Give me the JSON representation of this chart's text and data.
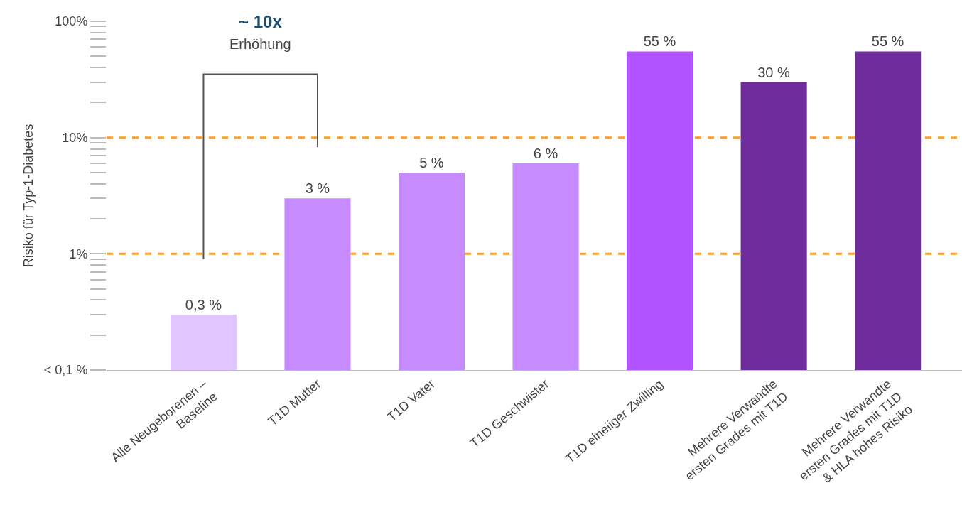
{
  "chart_data": {
    "type": "bar",
    "ylabel": "Risiko für Typ-1-Diabetes",
    "categories": [
      "Alle Neugeborenen –\nBaseline",
      "T1D Mutter",
      "T1D Vater",
      "T1D Geschwister",
      "T1D eineiiger Zwilling",
      "Mehrere Verwandte\nersten Grades mit T1D",
      "Mehrere Verwandte\nersten Grades mit T1D\n& HLA hohes Risiko"
    ],
    "values": [
      0.3,
      3,
      5,
      6,
      55,
      30,
      55
    ],
    "value_labels": [
      "0,3 %",
      "3 %",
      "5 %",
      "6 %",
      "55 %",
      "30 %",
      "55 %"
    ],
    "colors": [
      "#e2c6ff",
      "#c68cff",
      "#c68cff",
      "#c68cff",
      "#b153ff",
      "#6f2c9c",
      "#6f2c9c"
    ],
    "log": true,
    "ylim": [
      0.1,
      100
    ],
    "yticks": [
      {
        "value": 0.1,
        "label": "< 0,1 %"
      },
      {
        "value": 1,
        "label": "1%"
      },
      {
        "value": 10,
        "label": "10%"
      },
      {
        "value": 100,
        "label": "100%"
      }
    ],
    "ref_lines": [
      {
        "axis": "y",
        "value": 10,
        "label": null,
        "color": "#f7a033",
        "line_style": "dashed"
      },
      {
        "axis": "y",
        "value": 1,
        "label": null,
        "color": "#f7a033",
        "line_style": "dashed"
      }
    ],
    "annotations": [
      "~ 10x",
      "Erhöhung"
    ],
    "grid": false
  }
}
